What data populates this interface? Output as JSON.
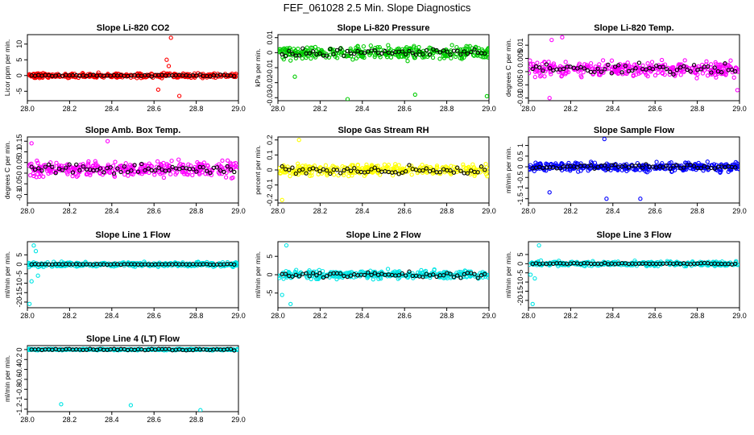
{
  "figure": {
    "title": "FEF_061028  2.5 Min. Slope Diagnostics"
  },
  "chart_data": [
    {
      "id": "p1",
      "type": "scatter",
      "title": "Slope Li-820 CO2",
      "ylabel": "Licor ppm per min.",
      "xlim": [
        28.0,
        29.0
      ],
      "ylim": [
        -8,
        13
      ],
      "xticks": [
        "28.0",
        "28.2",
        "28.4",
        "28.6",
        "28.8",
        "29.0"
      ],
      "yticks": [
        -5,
        0,
        5,
        10
      ],
      "color": "#ff0000",
      "center": 0,
      "spread": 1.0,
      "black_spread": 0.35,
      "outliers": [
        [
          28.68,
          12
        ],
        [
          28.66,
          5
        ],
        [
          28.72,
          -6.5
        ],
        [
          28.62,
          -4.5
        ],
        [
          28.67,
          3
        ]
      ]
    },
    {
      "id": "p2",
      "type": "scatter",
      "title": "Slope Li-820 Pressure",
      "ylabel": "kPa per min.",
      "xlim": [
        28.0,
        29.0
      ],
      "ylim": [
        -0.032,
        0.012
      ],
      "xticks": [
        "28.0",
        "28.2",
        "28.4",
        "28.6",
        "28.8",
        "29.0"
      ],
      "yticks": [
        -0.03,
        -0.02,
        -0.01,
        0,
        0.01
      ],
      "color": "#00cc00",
      "center": 0,
      "spread": 0.006,
      "black_spread": 0.004,
      "outliers": [
        [
          28.33,
          -0.031
        ],
        [
          28.65,
          -0.028
        ],
        [
          28.99,
          -0.029
        ],
        [
          28.08,
          -0.016
        ]
      ]
    },
    {
      "id": "p3",
      "type": "scatter",
      "title": "Slope Li-820 Temp.",
      "ylabel": "degrees C per min.",
      "xlim": [
        28.0,
        29.0
      ],
      "ylim": [
        -0.011,
        0.014
      ],
      "xticks": [
        "28.0",
        "28.2",
        "28.4",
        "28.6",
        "28.8",
        "29.0"
      ],
      "yticks": [
        -0.01,
        -0.005,
        0,
        0.005,
        0.01
      ],
      "color": "#ff00ff",
      "center": 0.001,
      "spread": 0.004,
      "black_spread": 0.003,
      "outliers": [
        [
          28.16,
          0.013
        ],
        [
          28.11,
          0.012
        ],
        [
          28.1,
          -0.01
        ],
        [
          28.99,
          -0.007
        ]
      ]
    },
    {
      "id": "p4",
      "type": "scatter",
      "title": "Slope Amb. Box Temp.",
      "ylabel": "degrees C per min.",
      "xlim": [
        28.0,
        29.0
      ],
      "ylim": [
        -0.14,
        0.17
      ],
      "xticks": [
        "28.0",
        "28.2",
        "28.4",
        "28.6",
        "28.8",
        "29.0"
      ],
      "yticks": [
        -0.1,
        -0.05,
        0,
        0.05,
        0.1,
        0.15
      ],
      "color": "#ff00ff",
      "center": 0.02,
      "spread": 0.05,
      "black_spread": 0.03,
      "outliers": [
        [
          28.38,
          0.15
        ],
        [
          28.02,
          0.14
        ]
      ]
    },
    {
      "id": "p5",
      "type": "scatter",
      "title": "Slope Gas Stream RH",
      "ylabel": "percent per min.",
      "xlim": [
        28.0,
        29.0
      ],
      "ylim": [
        -0.22,
        0.22
      ],
      "xticks": [
        "28.0",
        "28.2",
        "28.4",
        "28.6",
        "28.8",
        "29.0"
      ],
      "yticks": [
        -0.2,
        -0.1,
        0,
        0.1,
        0.2
      ],
      "color": "#ffff00",
      "center": 0,
      "spread": 0.05,
      "black_spread": 0.04,
      "outliers": [
        [
          28.1,
          0.2
        ],
        [
          28.02,
          -0.2
        ]
      ]
    },
    {
      "id": "p6",
      "type": "scatter",
      "title": "Slope Sample Flow",
      "ylabel": "ml/min per min.",
      "xlim": [
        28.0,
        29.0
      ],
      "ylim": [
        -1.7,
        1.4
      ],
      "xticks": [
        "28.0",
        "28.2",
        "28.4",
        "28.6",
        "28.8",
        "29.0"
      ],
      "yticks": [
        -1.5,
        -1,
        -0.5,
        0,
        0.5,
        1
      ],
      "color": "#0000ff",
      "center": 0,
      "spread": 0.3,
      "black_spread": 0.15,
      "outliers": [
        [
          28.36,
          1.3
        ],
        [
          28.37,
          -1.5
        ],
        [
          28.53,
          -1.5
        ],
        [
          28.1,
          -1.2
        ]
      ]
    },
    {
      "id": "p7",
      "type": "scatter",
      "title": "Slope Line 1 Flow",
      "ylabel": "ml/min per min.",
      "xlim": [
        28.0,
        29.0
      ],
      "ylim": [
        -23,
        12
      ],
      "xticks": [
        "28.0",
        "28.2",
        "28.4",
        "28.6",
        "28.8",
        "29.0"
      ],
      "yticks": [
        -20,
        -15,
        -10,
        -5,
        0,
        5
      ],
      "color": "#00e5e5",
      "center": 0,
      "spread": 1.8,
      "black_spread": 0.3,
      "outliers": [
        [
          28.01,
          -21
        ],
        [
          28.03,
          10
        ],
        [
          28.02,
          -9
        ],
        [
          28.05,
          -6
        ],
        [
          28.04,
          7
        ]
      ]
    },
    {
      "id": "p8",
      "type": "scatter",
      "title": "Slope Line 2 Flow",
      "ylabel": "ml/min per min.",
      "xlim": [
        28.0,
        29.0
      ],
      "ylim": [
        -9,
        9
      ],
      "xticks": [
        "28.0",
        "28.2",
        "28.4",
        "28.6",
        "28.8",
        "29.0"
      ],
      "yticks": [
        -5,
        0,
        5
      ],
      "color": "#00e5e5",
      "center": 0,
      "spread": 1.6,
      "black_spread": 1.2,
      "outliers": [
        [
          28.04,
          8
        ],
        [
          28.06,
          -8
        ],
        [
          28.02,
          -5.5
        ]
      ]
    },
    {
      "id": "p9",
      "type": "scatter",
      "title": "Slope Line 3 Flow",
      "ylabel": "ml/min per min.",
      "xlim": [
        28.0,
        29.0
      ],
      "ylim": [
        -24,
        12
      ],
      "xticks": [
        "28.0",
        "28.2",
        "28.4",
        "28.6",
        "28.8",
        "29.0"
      ],
      "yticks": [
        -20,
        -15,
        -10,
        -5,
        0,
        5
      ],
      "color": "#00e5e5",
      "center": 0,
      "spread": 1.8,
      "black_spread": 0.5,
      "outliers": [
        [
          28.02,
          -22
        ],
        [
          28.05,
          10
        ],
        [
          28.03,
          -8
        ],
        [
          28.01,
          -6
        ]
      ]
    },
    {
      "id": "p10",
      "type": "scatter",
      "title": "Slope Line 4 (LT) Flow",
      "ylabel": "ml/min per min.",
      "xlim": [
        28.0,
        29.0
      ],
      "ylim": [
        -1.25,
        0.08
      ],
      "xticks": [
        "28.0",
        "28.2",
        "28.4",
        "28.6",
        "28.8",
        "29.0"
      ],
      "yticks": [
        -1.2,
        -1,
        -0.8,
        -0.6,
        -0.4,
        -0.2,
        0
      ],
      "color": "#00e5e5",
      "center": 0,
      "spread": 0.02,
      "black_spread": 0.02,
      "outliers": [
        [
          28.16,
          -1.1
        ],
        [
          28.49,
          -1.12
        ],
        [
          28.82,
          -1.22
        ]
      ]
    }
  ]
}
